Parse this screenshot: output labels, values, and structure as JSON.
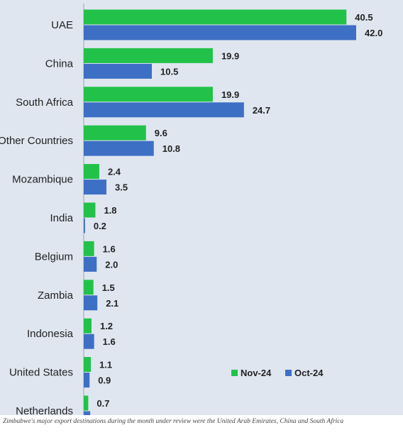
{
  "chart_data": {
    "type": "bar",
    "orientation": "horizontal",
    "categories": [
      "UAE",
      "China",
      "South Africa",
      "Other Countries",
      "Mozambique",
      "India",
      "Belgium",
      "Zambia",
      "Indonesia",
      "United States",
      "Netherlands"
    ],
    "series": [
      {
        "name": "Nov-24",
        "color": "#22c24a",
        "values": [
          40.5,
          19.9,
          19.9,
          9.6,
          2.4,
          1.8,
          1.6,
          1.5,
          1.2,
          1.1,
          0.7
        ],
        "labels": [
          "40.5",
          "19.9",
          "19.9",
          "9.6",
          "2.4",
          "1.8",
          "1.6",
          "1.5",
          "1.2",
          "1.1",
          "0.7"
        ]
      },
      {
        "name": "Oct-24",
        "color": "#3d6fc4",
        "values": [
          42.0,
          10.5,
          24.7,
          10.8,
          3.5,
          0.2,
          2.0,
          2.1,
          1.6,
          0.9,
          1.0
        ],
        "labels": [
          "42.0",
          "10.5",
          "24.7",
          "10.8",
          "3.5",
          "0.2",
          "2.0",
          "2.1",
          "1.6",
          "0.9",
          ""
        ]
      }
    ],
    "xlim": [
      0,
      42.0
    ],
    "legend": "bottom-right",
    "grid": false
  },
  "caption": "Zimbabwe's major export destinations during the month under review were the United Arab Emirates, China and South Africa"
}
